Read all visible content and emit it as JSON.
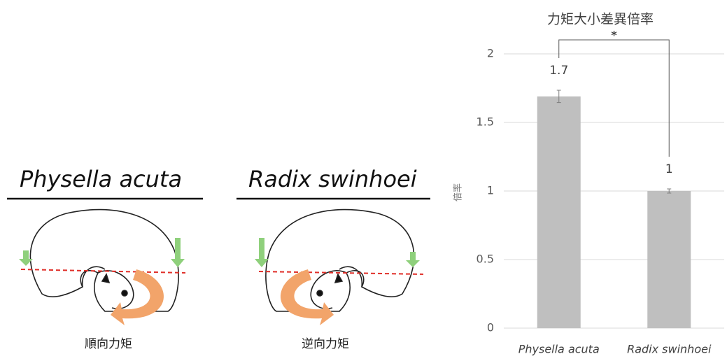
{
  "diagrams": [
    {
      "title": "Physella acuta",
      "caption": "順向力矩"
    },
    {
      "title": "Radix swinhoei",
      "caption": "逆向力矩"
    }
  ],
  "chart_data": {
    "type": "bar",
    "title": "力矩大小差異倍率",
    "y_label": "倍率",
    "categories": [
      "Physella acuta",
      "Radix swinhoei"
    ],
    "values": [
      1.69,
      1.0
    ],
    "value_labels": [
      "1.7",
      "1"
    ],
    "errors": [
      0.045,
      0.015
    ],
    "color": "#bfbfbf",
    "ylim": [
      0,
      2
    ],
    "yticks": [
      0,
      0.5,
      1,
      1.5,
      2
    ],
    "grid": true,
    "annotation": "*"
  }
}
